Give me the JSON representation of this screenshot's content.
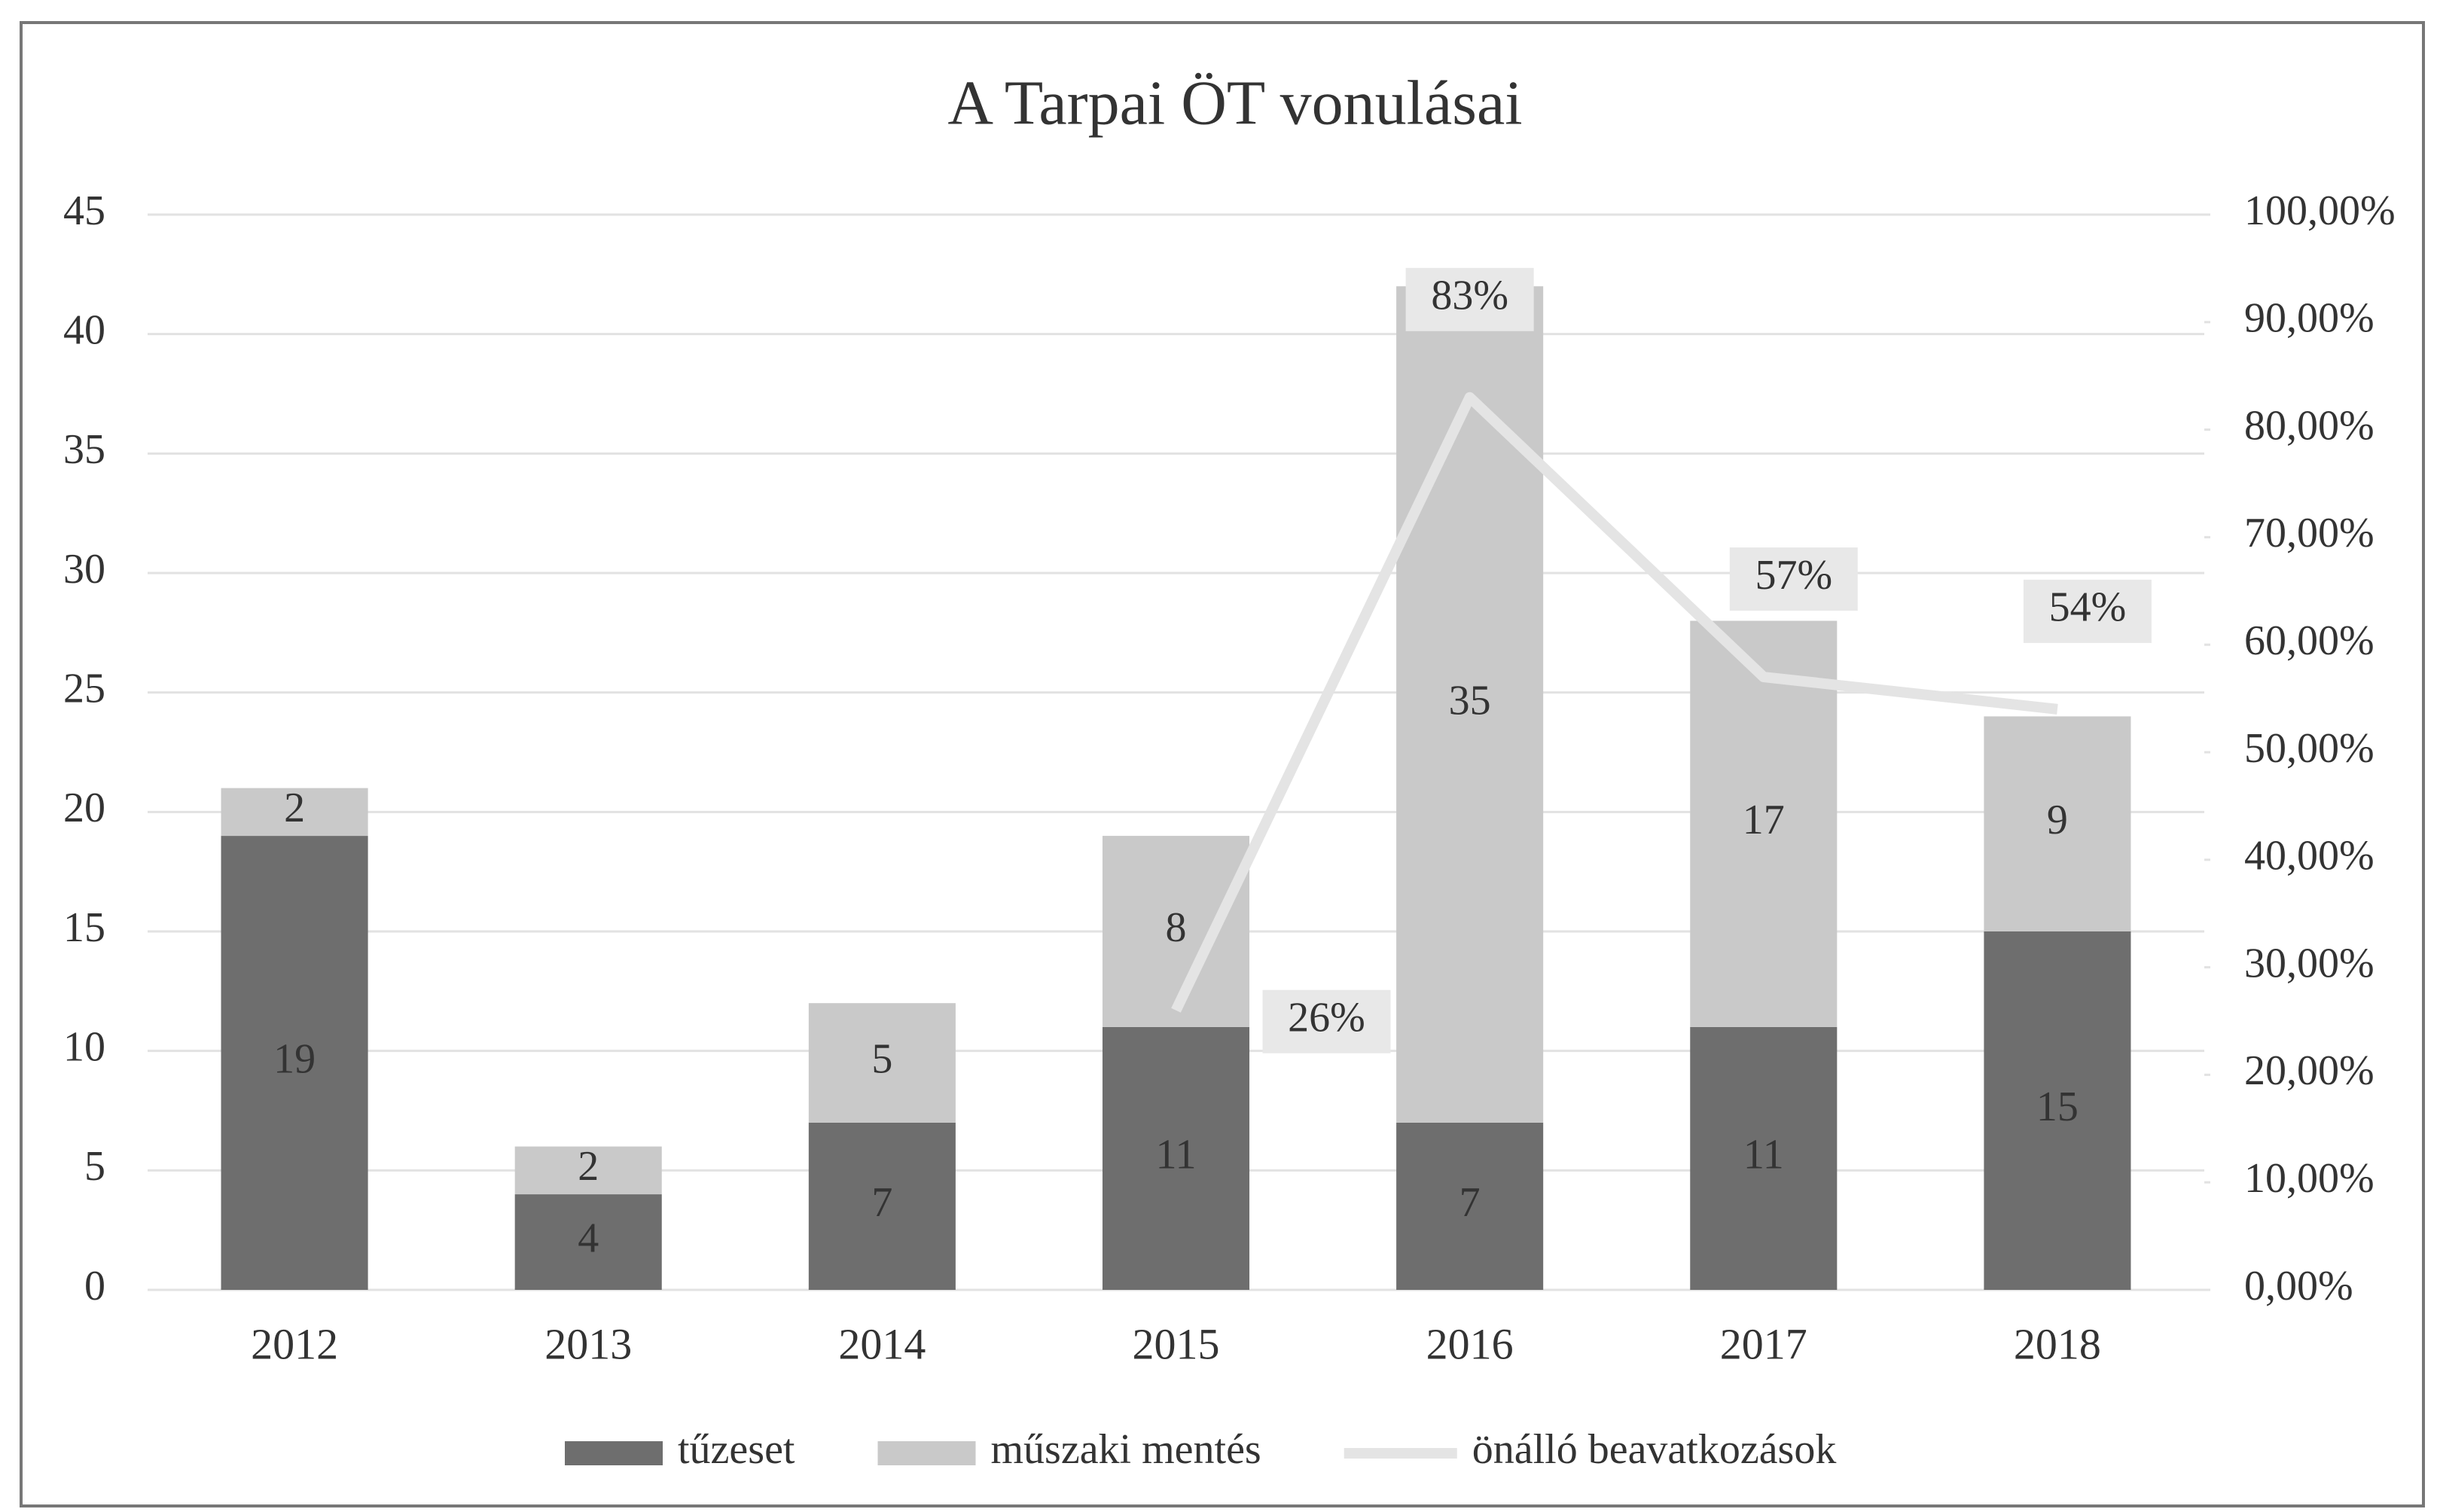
{
  "chart_data": {
    "type": "bar",
    "title": "A Tarpai ÖT vonulásai",
    "categories": [
      "2012",
      "2013",
      "2014",
      "2015",
      "2016",
      "2017",
      "2018"
    ],
    "stacked": true,
    "series": [
      {
        "name": "tűzeset",
        "type": "bar",
        "color": "#6e6e6e",
        "values": [
          19,
          4,
          7,
          11,
          7,
          11,
          15
        ]
      },
      {
        "name": "műszaki mentés",
        "type": "bar",
        "color": "#c9c9c9",
        "values": [
          2,
          2,
          5,
          8,
          35,
          17,
          9
        ]
      },
      {
        "name": "önálló beavatkozások",
        "type": "line",
        "axis": "y2",
        "color": "#e4e4e4",
        "values": [
          null,
          null,
          null,
          26,
          83,
          57,
          54
        ],
        "value_labels": [
          null,
          null,
          null,
          "26%",
          "83%",
          "57%",
          "54%"
        ]
      }
    ],
    "ylim": [
      0,
      45
    ],
    "yticks": [
      0,
      5,
      10,
      15,
      20,
      25,
      30,
      35,
      40,
      45
    ],
    "y2lim": [
      0,
      100
    ],
    "y2ticks": [
      {
        "value": 0,
        "label": "0,00%"
      },
      {
        "value": 10,
        "label": "10,00%"
      },
      {
        "value": 20,
        "label": "20,00%"
      },
      {
        "value": 30,
        "label": "30,00%"
      },
      {
        "value": 40,
        "label": "40,00%"
      },
      {
        "value": 50,
        "label": "50,00%"
      },
      {
        "value": 60,
        "label": "60,00%"
      },
      {
        "value": 70,
        "label": "70,00%"
      },
      {
        "value": 80,
        "label": "80,00%"
      },
      {
        "value": 90,
        "label": "90,00%"
      },
      {
        "value": 100,
        "label": "100,00%"
      }
    ],
    "grid": true,
    "legend": "bottom"
  }
}
